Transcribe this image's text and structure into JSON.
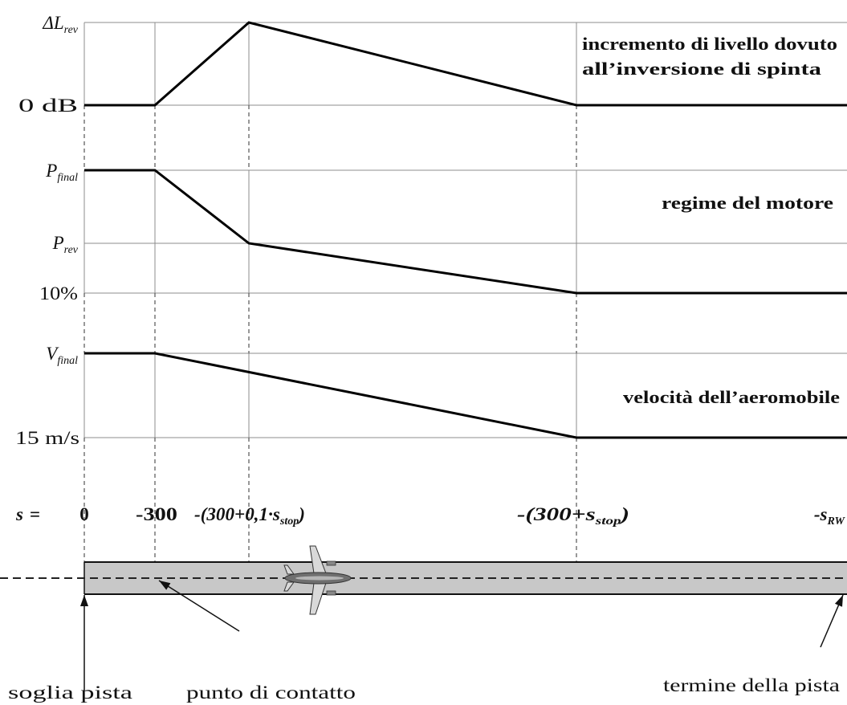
{
  "y_labels": {
    "level_max": {
      "symbol": "ΔL",
      "sub": "rev"
    },
    "level_zero": "0 dB",
    "power_final": {
      "symbol": "P",
      "sub": "final"
    },
    "power_rev": {
      "symbol": "P",
      "sub": "rev"
    },
    "power_min": "10%",
    "speed_final": {
      "symbol": "V",
      "sub": "final"
    },
    "speed_min": "15 m/s"
  },
  "curve_labels": {
    "level_increment": [
      "incremento di livello dovuto",
      "all’inversione di spinta"
    ],
    "engine_regime": "regime del motore",
    "aircraft_speed": "velocità dell’aeromobile"
  },
  "s_axis": {
    "symbol": "s",
    "equals": "=",
    "ticks": [
      {
        "pre": "0"
      },
      {
        "pre": "-300"
      },
      {
        "pre": "-(300+0,1·",
        "var": "s",
        "sub": "stop",
        "post": ")"
      },
      {
        "pre": "-(300+",
        "var": "s",
        "sub": "stop",
        "post": ")"
      },
      {
        "pre": "-",
        "var": "s",
        "sub": "RW"
      }
    ]
  },
  "runway_labels": {
    "threshold": "soglia pista",
    "touchdown": "punto di contatto",
    "runway_end": "termine della pista"
  },
  "colors": {
    "curve": "#000000",
    "grid": "#8c8c8c",
    "guide": "#555555",
    "runway": "#c8c8c8",
    "centerline": "#222222",
    "aircraft_body": "#6f6f6f",
    "aircraft_wing": "#d9d9d9"
  }
}
